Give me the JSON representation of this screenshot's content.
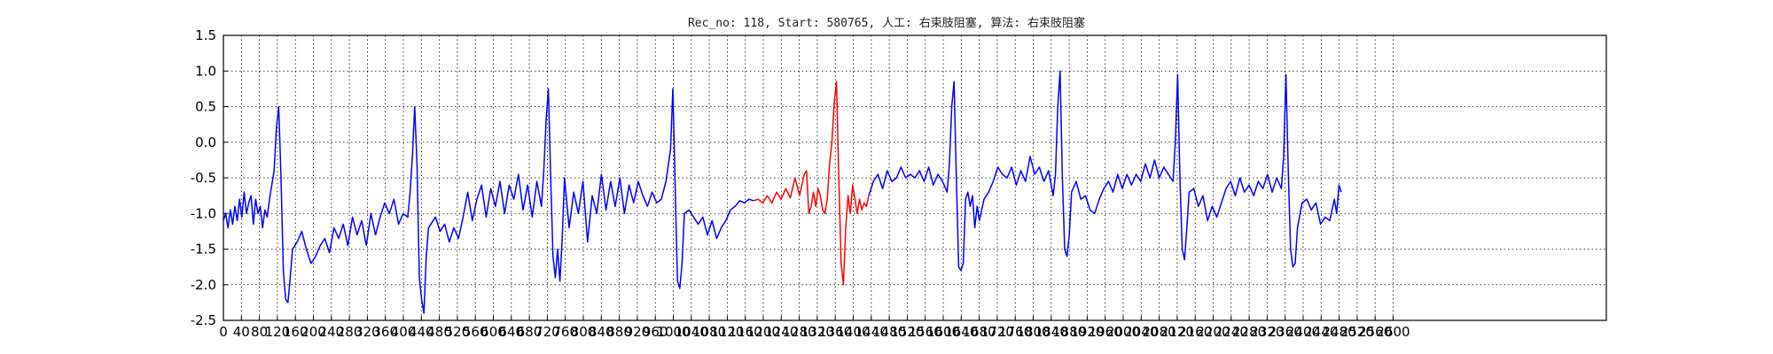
{
  "chart_data": {
    "type": "line",
    "title": "Rec_no: 118, Start: 580765, 人工: 右束肢阻塞, 算法: 右束肢阻塞",
    "xlabel": "",
    "ylabel": "",
    "xlim": [
      0,
      1200
    ],
    "ylim": [
      -2.5,
      1.5
    ],
    "grid": true,
    "y_ticks": [
      "1.5",
      "1.0",
      "0.5",
      "0.0",
      "-0.5",
      "-1.0",
      "-1.5",
      "-2.0",
      "-2.5"
    ],
    "x_ticks": [
      "0",
      "40",
      "80",
      "120",
      "160",
      "200",
      "240",
      "280",
      "320",
      "360",
      "400",
      "440",
      "480",
      "520",
      "560",
      "600",
      "640",
      "680",
      "720",
      "760",
      "800",
      "840",
      "880",
      "920",
      "960",
      "1000",
      "1040",
      "1080",
      "1120",
      "1160",
      "1200",
      "1240",
      "1280",
      "1320",
      "1360",
      "1400",
      "1440",
      "1480",
      "1520",
      "1560",
      "1600",
      "1640",
      "1680",
      "1720",
      "1760",
      "1800",
      "1840",
      "1880",
      "1920",
      "1960",
      "2000",
      "2040",
      "2080",
      "2120",
      "2160",
      "2200",
      "2240",
      "2280",
      "2320",
      "2360",
      "2400",
      "2440",
      "2480",
      "2520",
      "2560",
      "2600"
    ],
    "series": [
      {
        "color": "#0000ff",
        "points": [
          [
            0,
            -1.1
          ],
          [
            2,
            -1.0
          ],
          [
            4,
            -1.2
          ],
          [
            6,
            -0.95
          ],
          [
            8,
            -1.15
          ],
          [
            10,
            -0.9
          ],
          [
            12,
            -1.1
          ],
          [
            14,
            -0.8
          ],
          [
            16,
            -1.05
          ],
          [
            18,
            -0.7
          ],
          [
            20,
            -1.0
          ],
          [
            22,
            -0.85
          ],
          [
            24,
            -0.75
          ],
          [
            26,
            -1.15
          ],
          [
            28,
            -0.8
          ],
          [
            30,
            -1.0
          ],
          [
            32,
            -0.9
          ],
          [
            34,
            -1.2
          ],
          [
            36,
            -0.95
          ],
          [
            38,
            -1.05
          ],
          [
            40,
            -0.8
          ],
          [
            42,
            -0.6
          ],
          [
            44,
            -0.4
          ],
          [
            46,
            0.2
          ],
          [
            48,
            0.5
          ],
          [
            50,
            -0.5
          ],
          [
            52,
            -1.8
          ],
          [
            54,
            -2.2
          ],
          [
            56,
            -2.25
          ],
          [
            58,
            -1.9
          ],
          [
            60,
            -1.5
          ],
          [
            64,
            -1.4
          ],
          [
            68,
            -1.25
          ],
          [
            72,
            -1.5
          ],
          [
            76,
            -1.7
          ],
          [
            80,
            -1.6
          ],
          [
            84,
            -1.45
          ],
          [
            88,
            -1.35
          ],
          [
            92,
            -1.55
          ],
          [
            96,
            -1.2
          ],
          [
            100,
            -1.35
          ],
          [
            104,
            -1.15
          ],
          [
            108,
            -1.45
          ],
          [
            112,
            -1.05
          ],
          [
            116,
            -1.3
          ],
          [
            120,
            -1.1
          ],
          [
            124,
            -1.45
          ],
          [
            128,
            -1.0
          ],
          [
            132,
            -1.3
          ],
          [
            136,
            -1.05
          ],
          [
            140,
            -0.85
          ],
          [
            144,
            -1.0
          ],
          [
            148,
            -0.8
          ],
          [
            152,
            -1.15
          ],
          [
            156,
            -1.0
          ],
          [
            160,
            -1.05
          ],
          [
            162,
            -0.7
          ],
          [
            164,
            -0.2
          ],
          [
            166,
            0.5
          ],
          [
            168,
            -0.3
          ],
          [
            170,
            -1.9
          ],
          [
            172,
            -2.2
          ],
          [
            174,
            -2.4
          ],
          [
            176,
            -1.6
          ],
          [
            178,
            -1.2
          ],
          [
            180,
            -1.15
          ],
          [
            184,
            -1.05
          ],
          [
            188,
            -1.25
          ],
          [
            192,
            -1.15
          ],
          [
            196,
            -1.4
          ],
          [
            200,
            -1.2
          ],
          [
            204,
            -1.35
          ],
          [
            208,
            -1.05
          ],
          [
            212,
            -0.7
          ],
          [
            216,
            -1.1
          ],
          [
            220,
            -0.8
          ],
          [
            224,
            -0.6
          ],
          [
            228,
            -1.05
          ],
          [
            232,
            -0.65
          ],
          [
            236,
            -0.9
          ],
          [
            240,
            -0.55
          ],
          [
            244,
            -1.0
          ],
          [
            248,
            -0.6
          ],
          [
            252,
            -0.8
          ],
          [
            256,
            -0.45
          ],
          [
            260,
            -0.95
          ],
          [
            264,
            -0.6
          ],
          [
            268,
            -1.05
          ],
          [
            272,
            -0.55
          ],
          [
            276,
            -0.9
          ],
          [
            278,
            -0.4
          ],
          [
            280,
            0.3
          ],
          [
            282,
            0.75
          ],
          [
            284,
            -0.5
          ],
          [
            286,
            -1.6
          ],
          [
            288,
            -1.9
          ],
          [
            290,
            -1.5
          ],
          [
            292,
            -1.95
          ],
          [
            294,
            -1.35
          ],
          [
            296,
            -0.5
          ],
          [
            300,
            -1.2
          ],
          [
            304,
            -0.7
          ],
          [
            308,
            -1.0
          ],
          [
            312,
            -0.55
          ],
          [
            316,
            -1.4
          ],
          [
            320,
            -0.75
          ],
          [
            324,
            -1.0
          ],
          [
            328,
            -0.45
          ],
          [
            332,
            -0.95
          ],
          [
            336,
            -0.55
          ],
          [
            340,
            -0.9
          ],
          [
            344,
            -0.5
          ],
          [
            348,
            -1.0
          ],
          [
            352,
            -0.6
          ],
          [
            356,
            -0.85
          ],
          [
            360,
            -0.55
          ],
          [
            364,
            -0.75
          ],
          [
            368,
            -0.9
          ],
          [
            372,
            -0.7
          ],
          [
            376,
            -0.85
          ],
          [
            380,
            -0.8
          ],
          [
            384,
            -0.55
          ],
          [
            388,
            -0.1
          ],
          [
            390,
            0.75
          ],
          [
            392,
            -0.6
          ],
          [
            394,
            -1.95
          ],
          [
            396,
            -2.05
          ],
          [
            398,
            -1.7
          ],
          [
            400,
            -1.0
          ],
          [
            404,
            -0.95
          ],
          [
            408,
            -1.05
          ],
          [
            412,
            -1.15
          ],
          [
            416,
            -1.05
          ],
          [
            420,
            -1.3
          ],
          [
            424,
            -1.1
          ],
          [
            428,
            -1.35
          ],
          [
            432,
            -1.2
          ],
          [
            436,
            -1.1
          ],
          [
            440,
            -0.95
          ],
          [
            444,
            -0.9
          ],
          [
            448,
            -0.82
          ],
          [
            452,
            -0.85
          ],
          [
            456,
            -0.8
          ],
          [
            460,
            -0.82
          ]
        ]
      },
      {
        "color": "#ff0000",
        "points": [
          [
            460,
            -0.82
          ],
          [
            464,
            -0.8
          ],
          [
            468,
            -0.85
          ],
          [
            472,
            -0.75
          ],
          [
            476,
            -0.85
          ],
          [
            480,
            -0.7
          ],
          [
            484,
            -0.8
          ],
          [
            488,
            -0.65
          ],
          [
            492,
            -0.78
          ],
          [
            496,
            -0.5
          ],
          [
            500,
            -0.75
          ],
          [
            504,
            -0.45
          ],
          [
            506,
            -0.4
          ],
          [
            508,
            -1.0
          ],
          [
            510,
            -0.9
          ],
          [
            512,
            -0.7
          ],
          [
            514,
            -0.9
          ],
          [
            516,
            -0.65
          ],
          [
            518,
            -0.75
          ],
          [
            520,
            -0.95
          ],
          [
            522,
            -1.0
          ],
          [
            524,
            -0.8
          ],
          [
            526,
            -0.3
          ],
          [
            528,
            0.0
          ],
          [
            530,
            0.55
          ],
          [
            532,
            0.85
          ],
          [
            534,
            -0.5
          ],
          [
            536,
            -1.7
          ],
          [
            538,
            -2.0
          ],
          [
            540,
            -1.2
          ],
          [
            542,
            -0.75
          ],
          [
            544,
            -1.0
          ],
          [
            546,
            -0.6
          ],
          [
            548,
            -0.8
          ],
          [
            550,
            -1.0
          ],
          [
            552,
            -0.8
          ],
          [
            554,
            -0.95
          ],
          [
            556,
            -0.85
          ],
          [
            558,
            -0.9
          ],
          [
            560,
            -0.75
          ]
        ]
      },
      {
        "color": "#0000ff",
        "points": [
          [
            560,
            -0.75
          ],
          [
            564,
            -0.55
          ],
          [
            568,
            -0.45
          ],
          [
            572,
            -0.65
          ],
          [
            576,
            -0.4
          ],
          [
            580,
            -0.55
          ],
          [
            584,
            -0.5
          ],
          [
            588,
            -0.35
          ],
          [
            592,
            -0.5
          ],
          [
            596,
            -0.45
          ],
          [
            600,
            -0.5
          ],
          [
            604,
            -0.4
          ],
          [
            608,
            -0.55
          ],
          [
            612,
            -0.35
          ],
          [
            616,
            -0.6
          ],
          [
            620,
            -0.45
          ],
          [
            624,
            -0.55
          ],
          [
            628,
            -0.7
          ],
          [
            630,
            -0.3
          ],
          [
            632,
            0.5
          ],
          [
            634,
            0.85
          ],
          [
            636,
            -0.5
          ],
          [
            638,
            -1.75
          ],
          [
            640,
            -1.8
          ],
          [
            642,
            -1.7
          ],
          [
            644,
            -0.8
          ],
          [
            646,
            -0.7
          ],
          [
            648,
            -0.9
          ],
          [
            650,
            -0.75
          ],
          [
            652,
            -1.2
          ],
          [
            654,
            -0.9
          ],
          [
            656,
            -1.1
          ],
          [
            660,
            -0.8
          ],
          [
            664,
            -0.7
          ],
          [
            668,
            -0.55
          ],
          [
            672,
            -0.35
          ],
          [
            676,
            -0.45
          ],
          [
            680,
            -0.5
          ],
          [
            684,
            -0.35
          ],
          [
            688,
            -0.6
          ],
          [
            692,
            -0.4
          ],
          [
            696,
            -0.55
          ],
          [
            700,
            -0.2
          ],
          [
            704,
            -0.45
          ],
          [
            708,
            -0.35
          ],
          [
            712,
            -0.55
          ],
          [
            716,
            -0.4
          ],
          [
            720,
            -0.75
          ],
          [
            722,
            -0.45
          ],
          [
            724,
            0.5
          ],
          [
            726,
            1.0
          ],
          [
            728,
            -0.5
          ],
          [
            730,
            -1.5
          ],
          [
            732,
            -1.6
          ],
          [
            734,
            -1.3
          ],
          [
            736,
            -0.7
          ],
          [
            740,
            -0.55
          ],
          [
            744,
            -0.8
          ],
          [
            748,
            -0.75
          ],
          [
            752,
            -0.95
          ],
          [
            756,
            -1.0
          ],
          [
            760,
            -0.8
          ],
          [
            764,
            -0.65
          ],
          [
            768,
            -0.55
          ],
          [
            772,
            -0.7
          ],
          [
            776,
            -0.45
          ],
          [
            780,
            -0.65
          ],
          [
            784,
            -0.45
          ],
          [
            788,
            -0.6
          ],
          [
            792,
            -0.45
          ],
          [
            796,
            -0.55
          ],
          [
            800,
            -0.3
          ],
          [
            804,
            -0.5
          ],
          [
            808,
            -0.25
          ],
          [
            812,
            -0.5
          ],
          [
            816,
            -0.35
          ],
          [
            820,
            -0.45
          ],
          [
            824,
            -0.55
          ],
          [
            826,
            0.0
          ],
          [
            828,
            0.95
          ],
          [
            830,
            -0.5
          ],
          [
            832,
            -1.5
          ],
          [
            834,
            -1.65
          ],
          [
            836,
            -1.2
          ],
          [
            838,
            -0.7
          ],
          [
            842,
            -0.65
          ],
          [
            846,
            -0.9
          ],
          [
            850,
            -0.75
          ],
          [
            854,
            -1.1
          ],
          [
            858,
            -0.9
          ],
          [
            862,
            -1.05
          ],
          [
            866,
            -0.85
          ],
          [
            870,
            -0.65
          ],
          [
            874,
            -0.55
          ],
          [
            878,
            -0.75
          ],
          [
            882,
            -0.5
          ],
          [
            886,
            -0.7
          ],
          [
            890,
            -0.6
          ],
          [
            894,
            -0.75
          ],
          [
            898,
            -0.55
          ],
          [
            902,
            -0.65
          ],
          [
            906,
            -0.45
          ],
          [
            910,
            -0.7
          ],
          [
            914,
            -0.5
          ],
          [
            918,
            -0.65
          ],
          [
            920,
            -0.2
          ],
          [
            922,
            0.95
          ],
          [
            924,
            -0.4
          ],
          [
            926,
            -1.5
          ],
          [
            928,
            -1.75
          ],
          [
            930,
            -1.7
          ],
          [
            932,
            -1.2
          ],
          [
            936,
            -0.85
          ],
          [
            940,
            -0.8
          ],
          [
            944,
            -0.95
          ],
          [
            948,
            -0.85
          ],
          [
            952,
            -1.15
          ],
          [
            956,
            -1.05
          ],
          [
            960,
            -1.1
          ],
          [
            964,
            -0.8
          ],
          [
            966,
            -1.0
          ],
          [
            968,
            -0.6
          ],
          [
            970,
            -0.7
          ]
        ]
      }
    ]
  }
}
